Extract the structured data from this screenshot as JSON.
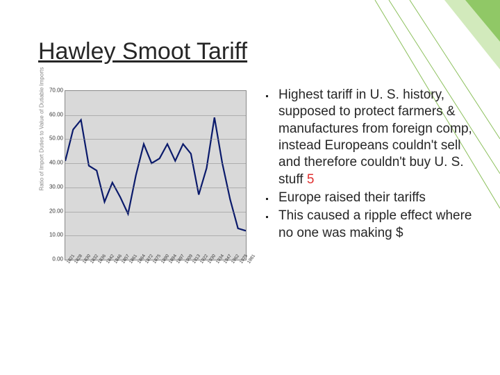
{
  "slide": {
    "title": "Hawley Smoot Tariff",
    "bullets": [
      {
        "main": "Highest tariff in U. S. history, supposed to protect farmers & manufactures from foreign comp, instead Europeans couldn't sell and therefore couldn't buy U. S. stuff",
        "extra": "5"
      },
      {
        "main": "Europe raised their tariffs",
        "extra": ""
      },
      {
        "main": "This caused a ripple effect where no one was making $",
        "extra": ""
      }
    ]
  },
  "chart": {
    "type": "line",
    "ylabel": "Ratio of Import Duties to Value of Dutiable Imports",
    "ylim": [
      0,
      70
    ],
    "ytick_step": 10,
    "xlabels": [
      "1821",
      "1828",
      "1830",
      "1832",
      "1836",
      "1842",
      "1846",
      "1857",
      "1861",
      "1864",
      "1872",
      "1875",
      "1890",
      "1894",
      "1897",
      "1909",
      "1913",
      "1922",
      "1930",
      "1934",
      "1947",
      "1962",
      "1975",
      "1981"
    ],
    "values": [
      41,
      54,
      58,
      39,
      37,
      24,
      32,
      26,
      19,
      35,
      48,
      40,
      42,
      48,
      41,
      48,
      44,
      27,
      38,
      59,
      40,
      25,
      13,
      12
    ],
    "line_color": "#0a1a6b",
    "background_color": "#d9d9d9",
    "grid_color": "#888888",
    "label_fontsize": 8
  },
  "deco": {
    "leaf_fill": "#6db33f",
    "leaf_fill_light": "#a5d67a",
    "line_color": "#8abf5a"
  }
}
